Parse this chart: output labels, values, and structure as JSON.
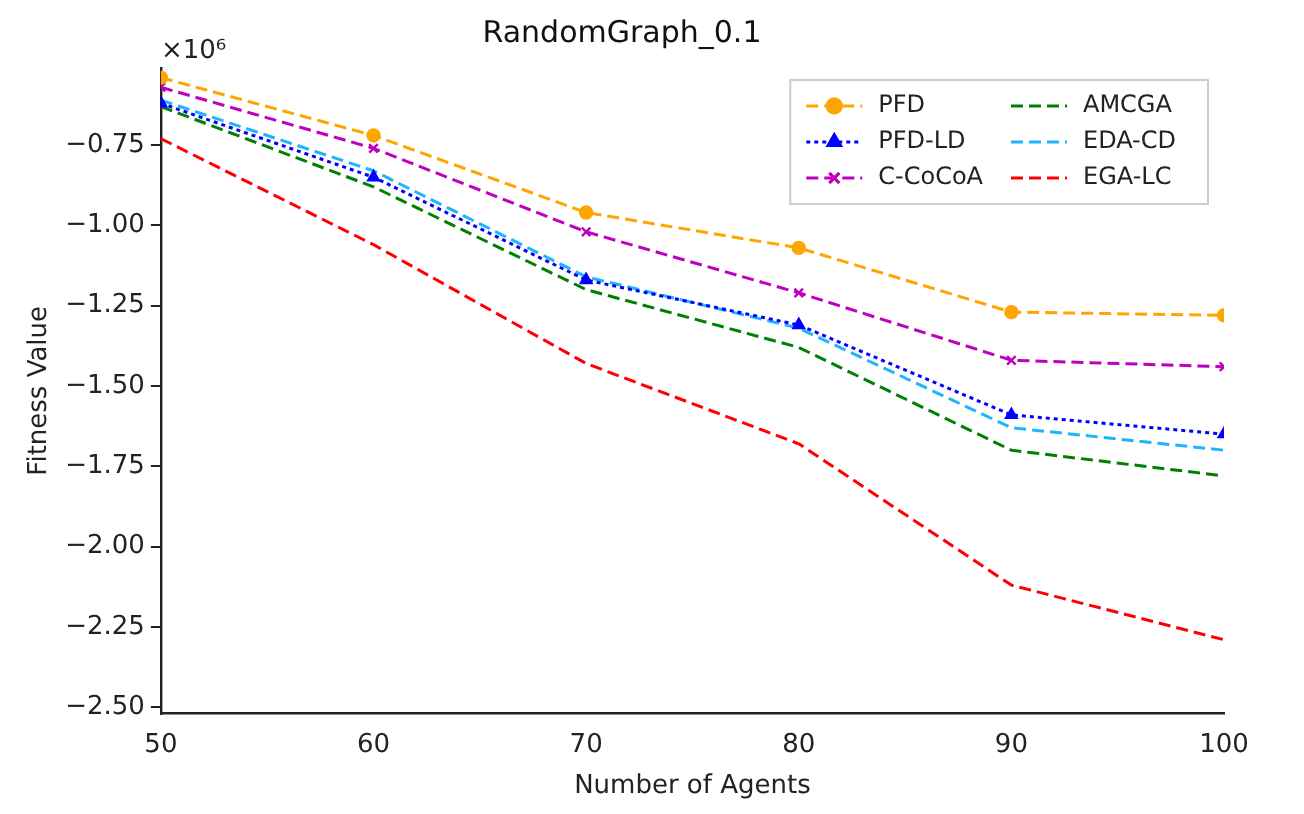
{
  "chart_data": {
    "type": "line",
    "title": "RandomGraph_0.1",
    "xlabel": "Number of Agents",
    "ylabel": "Fitness Value",
    "annotations": [
      "×10⁶"
    ],
    "x": [
      50,
      60,
      70,
      80,
      90,
      100
    ],
    "xlim": [
      50,
      100
    ],
    "xticks": [
      50,
      60,
      70,
      80,
      90,
      100
    ],
    "ylim": [
      -2.52,
      -0.51
    ],
    "yticks": [
      {
        "value": -0.75,
        "label": "−0.75"
      },
      {
        "value": -1,
        "label": "−1.00"
      },
      {
        "value": -1.25,
        "label": "−1.25"
      },
      {
        "value": -1.5,
        "label": "−1.50"
      },
      {
        "value": -1.75,
        "label": "−1.75"
      },
      {
        "value": -2,
        "label": "−2.00"
      },
      {
        "value": -2.25,
        "label": "−2.25"
      },
      {
        "value": -2.5,
        "label": "−2.50"
      }
    ],
    "grid": false,
    "legend": "top right",
    "series": [
      {
        "name": "PFD",
        "color": "#ffa500",
        "marker": "circle",
        "line_style": "dashed",
        "values": [
          -0.54,
          -0.72,
          -0.96,
          -1.07,
          -1.27,
          -1.28
        ]
      },
      {
        "name": "PFD-LD",
        "color": "#0000ff",
        "marker": "triangle",
        "line_style": "dotted",
        "values": [
          -0.62,
          -0.85,
          -1.17,
          -1.31,
          -1.59,
          -1.65
        ]
      },
      {
        "name": "C-CoCoA",
        "color": "#bf00bf",
        "marker": "cross",
        "line_style": "dashed",
        "values": [
          -0.57,
          -0.76,
          -1.02,
          -1.21,
          -1.42,
          -1.44
        ]
      },
      {
        "name": "AMCGA",
        "color": "#008000",
        "marker": "none",
        "line_style": "dashed",
        "values": [
          -0.63,
          -0.88,
          -1.2,
          -1.38,
          -1.7,
          -1.78
        ]
      },
      {
        "name": "EDA-CD",
        "color": "#1eb4ff",
        "marker": "none",
        "line_style": "dashed",
        "values": [
          -0.61,
          -0.83,
          -1.16,
          -1.32,
          -1.63,
          -1.7
        ]
      },
      {
        "name": "EGA-LC",
        "color": "#ff0000",
        "marker": "none",
        "line_style": "dashed",
        "values": [
          -0.73,
          -1.06,
          -1.43,
          -1.68,
          -2.12,
          -2.29
        ]
      }
    ]
  }
}
